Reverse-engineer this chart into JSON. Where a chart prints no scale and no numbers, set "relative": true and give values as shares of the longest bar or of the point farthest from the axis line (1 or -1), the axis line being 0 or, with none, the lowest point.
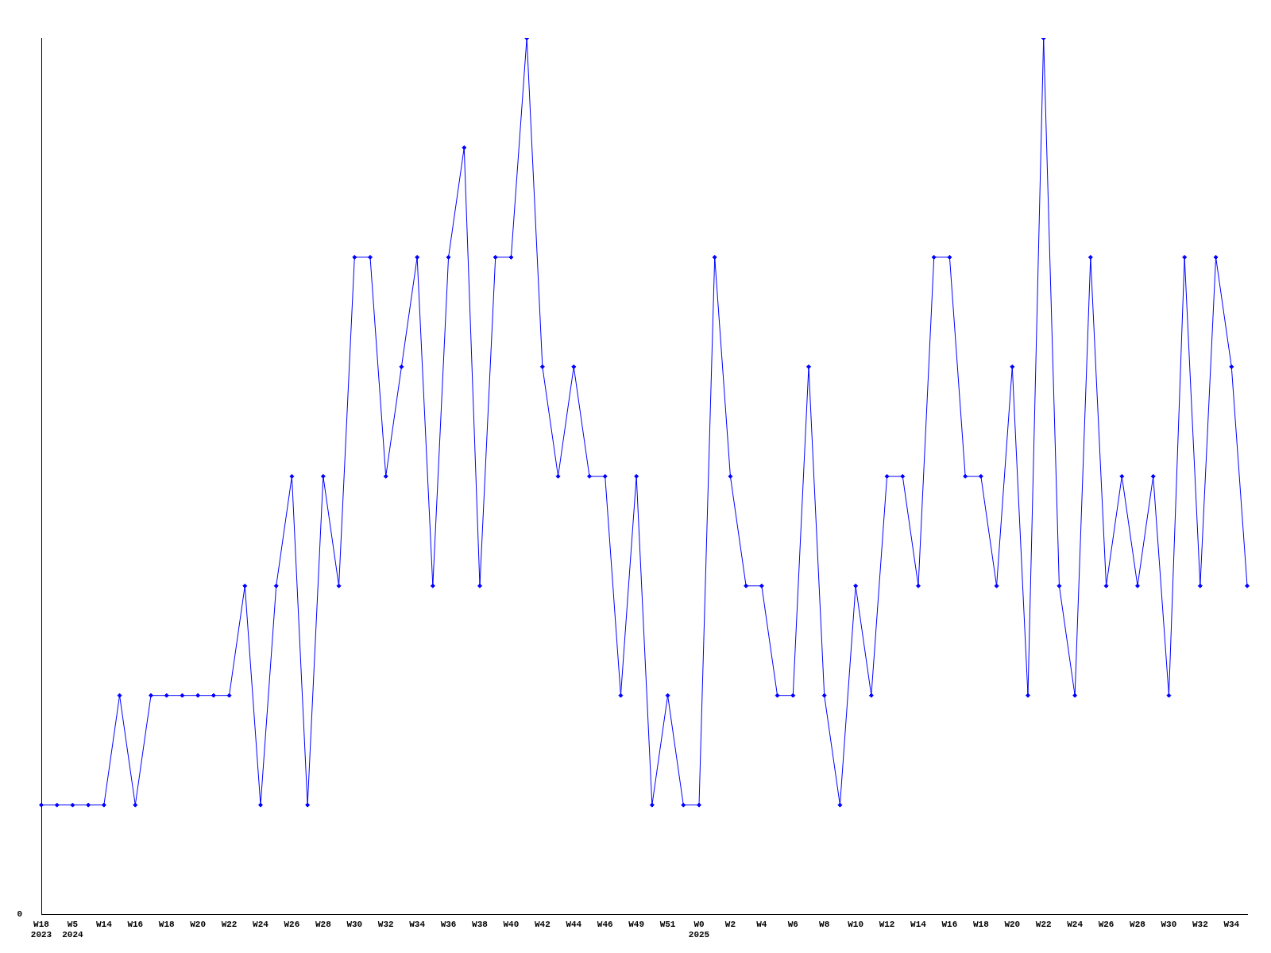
{
  "chart_data": {
    "type": "line",
    "relative": true,
    "color": "#0000ff",
    "marker": "diamond",
    "grid": false,
    "legend": false,
    "categories": [
      "W18\n2023",
      null,
      "W5\n2024",
      null,
      "W14",
      null,
      "W16",
      null,
      "W18",
      null,
      "W20",
      null,
      "W22",
      null,
      "W24",
      null,
      "W26",
      null,
      "W28",
      null,
      "W30",
      null,
      "W32",
      null,
      "W34",
      null,
      "W36",
      null,
      "W38",
      null,
      "W40",
      null,
      "W42",
      null,
      "W44",
      null,
      "W46",
      null,
      "W49",
      null,
      "W51",
      null,
      "W0\n2025",
      null,
      "W2",
      null,
      "W4",
      null,
      "W6",
      null,
      "W8",
      null,
      "W10",
      null,
      "W12",
      null,
      "W14",
      null,
      "W16",
      null,
      "W18",
      null,
      "W20",
      null,
      "W22",
      null,
      "W24",
      null,
      "W26",
      null,
      "W28",
      null,
      "W30",
      null,
      "W32",
      null,
      "W34",
      null
    ],
    "values": [
      0.125,
      0.125,
      0.125,
      0.125,
      0.125,
      0.25,
      0.125,
      0.25,
      0.25,
      0.25,
      0.25,
      0.25,
      0.25,
      0.375,
      0.125,
      0.375,
      0.5,
      0.125,
      0.5,
      0.375,
      0.75,
      0.75,
      0.5,
      0.625,
      0.75,
      0.375,
      0.75,
      0.875,
      0.375,
      0.75,
      0.75,
      1,
      0.625,
      0.5,
      0.625,
      0.5,
      0.5,
      0.25,
      0.5,
      0.125,
      0.25,
      0.125,
      0.125,
      0.75,
      0.5,
      0.375,
      0.375,
      0.25,
      0.25,
      0.625,
      0.25,
      0.125,
      0.375,
      0.25,
      0.5,
      0.5,
      0.375,
      0.75,
      0.75,
      0.5,
      0.5,
      0.375,
      0.625,
      0.25,
      1,
      0.375,
      0.25,
      0.75,
      0.375,
      0.5,
      0.375,
      0.5,
      0.25,
      0.75,
      0.375,
      0.75,
      0.625,
      0.375
    ],
    "annotations": [
      "0"
    ]
  }
}
